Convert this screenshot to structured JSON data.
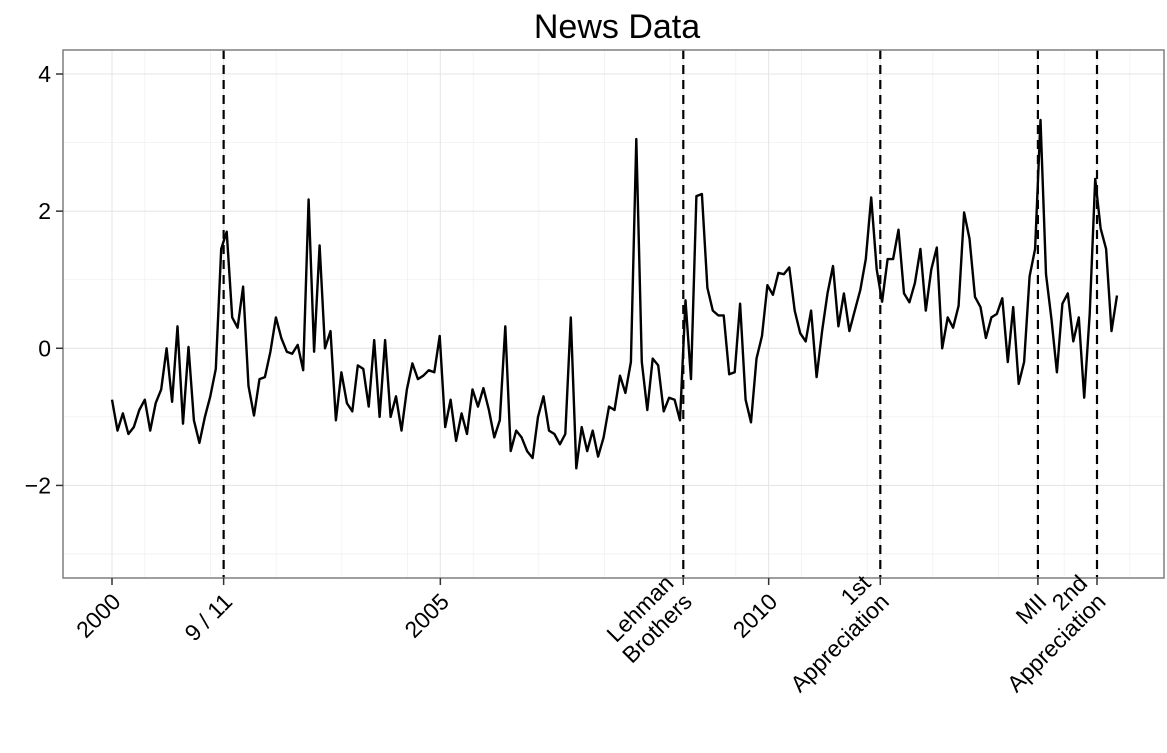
{
  "chart_data": {
    "type": "line",
    "title": "News Data",
    "xlabel": "",
    "ylabel": "",
    "x_range": [
      1999.65,
      2013.0
    ],
    "ylim": [
      -3.35,
      4.35
    ],
    "y_ticks": [
      -2,
      0,
      2,
      4
    ],
    "y_tick_labels": [
      "−2",
      "0",
      "2",
      "4"
    ],
    "x_ticks": [
      {
        "x": 2000.0,
        "label": [
          "2000"
        ]
      },
      {
        "x": 2001.7,
        "label": [
          "9 / 11"
        ]
      },
      {
        "x": 2005.0,
        "label": [
          "2005"
        ]
      },
      {
        "x": 2008.7,
        "label": [
          "Lehman",
          "Brothers"
        ]
      },
      {
        "x": 2010.0,
        "label": [
          "2010"
        ]
      },
      {
        "x": 2011.7,
        "label": [
          "1st",
          "Appreciation"
        ]
      },
      {
        "x": 2014.1,
        "label": [
          "MII"
        ]
      },
      {
        "x": 2015.0,
        "label": [
          "2nd",
          "Appreciation"
        ]
      }
    ],
    "events": [
      {
        "x": 2001.7
      },
      {
        "x": 2008.7
      },
      {
        "x": 2011.7
      },
      {
        "x": 2014.1
      },
      {
        "x": 2015.0
      }
    ],
    "grid": true,
    "series": [
      {
        "values": [
          -0.75,
          -1.2,
          -0.95,
          -1.25,
          -1.15,
          -0.9,
          -0.75,
          -1.2,
          -0.8,
          -0.6,
          0.0,
          -0.78,
          0.32,
          -1.1,
          0.02,
          -1.05,
          -1.38,
          -1.0,
          -0.7,
          -0.3,
          1.45,
          1.7,
          0.45,
          0.3,
          0.9,
          -0.55,
          -0.98,
          -0.45,
          -0.42,
          -0.05,
          0.45,
          0.15,
          -0.05,
          -0.08,
          0.05,
          -0.32,
          2.17,
          -0.05,
          1.5,
          0.0,
          0.25,
          -1.05,
          -0.35,
          -0.8,
          -0.92,
          -0.25,
          -0.3,
          -0.85,
          0.12,
          -1.0,
          0.12,
          -1.0,
          -0.7,
          -1.2,
          -0.6,
          -0.22,
          -0.45,
          -0.4,
          -0.32,
          -0.35,
          0.18,
          -1.15,
          -0.75,
          -1.35,
          -0.95,
          -1.25,
          -0.6,
          -0.85,
          -0.58,
          -0.9,
          -1.3,
          -1.05,
          0.32,
          -1.5,
          -1.2,
          -1.3,
          -1.5,
          -1.6,
          -1.0,
          -0.7,
          -1.2,
          -1.25,
          -1.4,
          -1.25,
          0.45,
          -1.75,
          -1.15,
          -1.5,
          -1.2,
          -1.58,
          -1.3,
          -0.85,
          -0.9,
          -0.4,
          -0.65,
          -0.2,
          3.05,
          -0.2,
          -0.9,
          -0.15,
          -0.25,
          -0.92,
          -0.72,
          -0.75,
          -1.05,
          0.7,
          -0.45,
          2.22,
          2.25,
          0.88,
          0.55,
          0.48,
          0.48,
          -0.38,
          -0.35,
          0.65,
          -0.75,
          -1.08,
          -0.15,
          0.18,
          0.92,
          0.78,
          1.1,
          1.08,
          1.18,
          0.55,
          0.22,
          0.1,
          0.55,
          -0.42,
          0.25,
          0.8,
          1.2,
          0.32,
          0.8,
          0.25,
          0.55,
          0.85,
          1.3,
          2.2,
          1.15,
          0.68,
          1.3,
          1.3,
          1.73,
          0.8,
          0.67,
          0.95,
          1.45,
          0.55,
          1.15,
          1.47,
          0.0,
          0.45,
          0.3,
          0.62,
          1.98,
          1.6,
          0.75,
          0.6,
          0.15,
          0.45,
          0.5,
          0.73,
          -0.2,
          0.6,
          -0.52,
          -0.2,
          1.05,
          1.45,
          3.33,
          1.08,
          0.42,
          -0.35,
          0.65,
          0.8,
          0.1,
          0.45,
          -0.72,
          0.5,
          2.47,
          1.75,
          1.45,
          0.25,
          0.77
        ]
      }
    ]
  }
}
